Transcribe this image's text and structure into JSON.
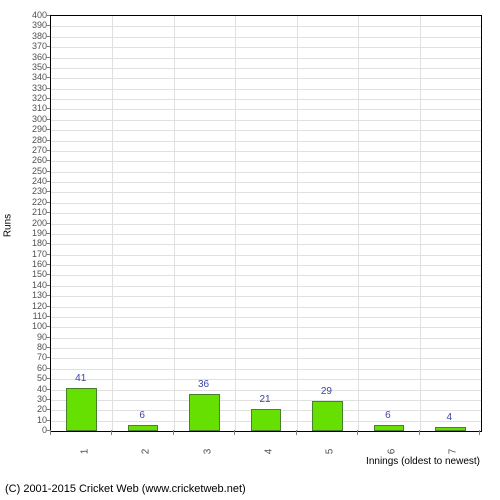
{
  "chart": {
    "type": "bar",
    "ylabel": "Runs",
    "xlabel": "Innings (oldest to newest)",
    "ylim": [
      0,
      400
    ],
    "ytick_step": 10,
    "background_color": "#ffffff",
    "grid_color": "#e0e0e0",
    "bar_color": "#66e000",
    "bar_border_color": "#488030",
    "value_label_color": "#3d43a8",
    "axis_label_color": "#505050",
    "categories": [
      "1",
      "2",
      "3",
      "4",
      "5",
      "6",
      "7"
    ],
    "values": [
      41,
      6,
      36,
      21,
      29,
      6,
      4
    ],
    "bar_width_ratio": 0.5
  },
  "footer": "(C) 2001-2015 Cricket Web (www.cricketweb.net)"
}
